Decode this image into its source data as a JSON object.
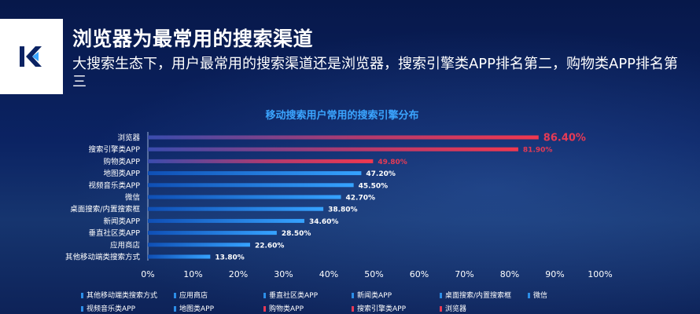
{
  "header": {
    "title": "浏览器为最常用的搜索渠道",
    "subtitle": "大搜索生态下，用户最常用的搜索渠道还是浏览器，搜索引擎类APP排名第二，购物类APP排名第三"
  },
  "colors": {
    "highlight": "#e63a55",
    "bar_blue": "#2c8ee8",
    "title": "#3ba5ff"
  },
  "chart_data": {
    "type": "bar",
    "orientation": "horizontal",
    "title": "移动搜索用户常用的搜索引擎分布",
    "categories": [
      "浏览器",
      "搜索引擎类APP",
      "购物类APP",
      "地图类APP",
      "视频音乐类APP",
      "微信",
      "桌面搜索/内置搜索框",
      "新闻类APP",
      "垂直社区类APP",
      "应用商店",
      "其他移动端类搜索方式"
    ],
    "values": [
      86.4,
      81.9,
      49.8,
      47.2,
      45.5,
      42.7,
      38.8,
      34.6,
      28.5,
      22.6,
      13.8
    ],
    "value_labels": [
      "86.40%",
      "81.90%",
      "49.80%",
      "47.20%",
      "45.50%",
      "42.70%",
      "38.80%",
      "34.60%",
      "28.50%",
      "22.60%",
      "13.80%"
    ],
    "highlighted": [
      true,
      true,
      true,
      false,
      false,
      false,
      false,
      false,
      false,
      false,
      false
    ],
    "xlim": [
      0,
      100
    ],
    "x_ticks": [
      "0%",
      "10%",
      "20%",
      "30%",
      "40%",
      "50%",
      "60%",
      "70%",
      "80%",
      "90%",
      "100%"
    ],
    "grid": false,
    "legend_position": "bottom",
    "legend": [
      "其他移动端类搜索方式",
      "应用商店",
      "垂直社区类APP",
      "新闻类APP",
      "桌面搜索/内置搜索框",
      "微信",
      "视频音乐类APP",
      "地图类APP",
      "购物类APP",
      "搜索引擎类APP",
      "浏览器"
    ]
  }
}
